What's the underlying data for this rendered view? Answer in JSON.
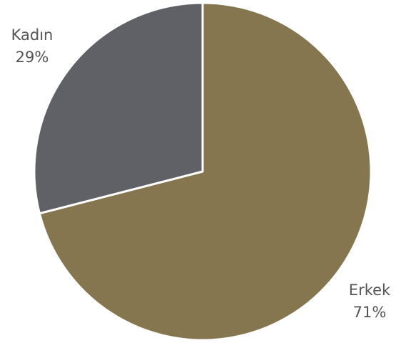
{
  "chart_data": {
    "type": "pie",
    "start_angle_deg": 90,
    "direction": "clockwise",
    "slices": [
      {
        "label": "Erkek",
        "value": 71,
        "value_label": "71%",
        "color": "#85764F"
      },
      {
        "label": "Kadın",
        "value": 29,
        "value_label": "29%",
        "color": "#606166"
      }
    ],
    "slice_border_color": "#FFFFFF"
  }
}
